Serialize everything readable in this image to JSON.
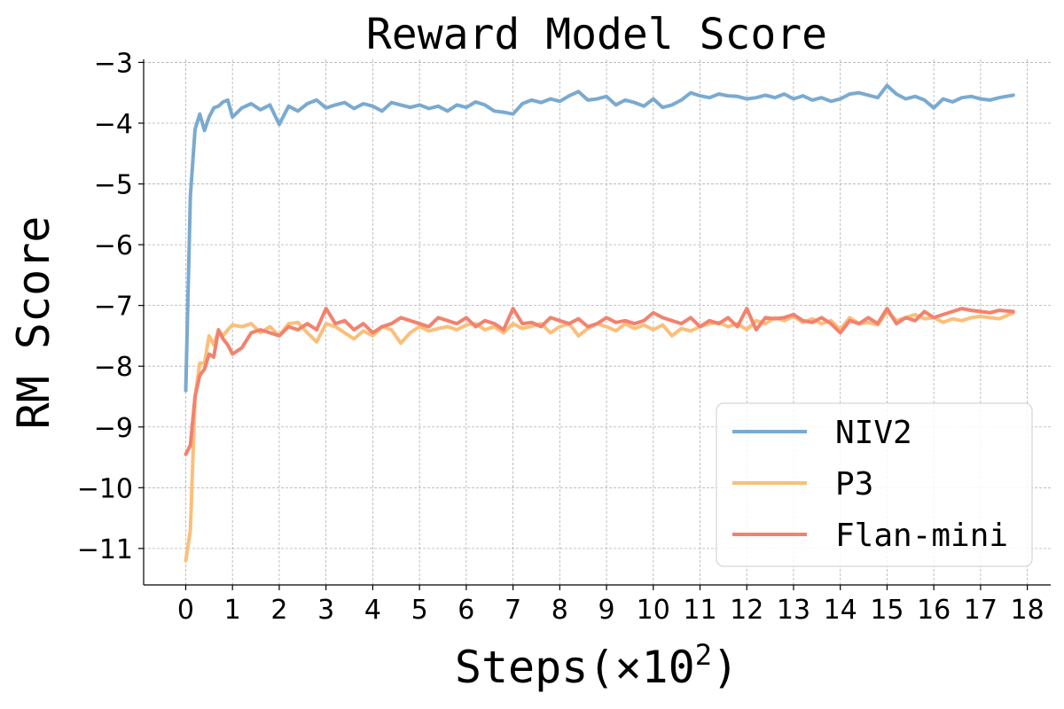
{
  "chart_data": {
    "type": "line",
    "title": "Reward Model Score",
    "xlabel_main": "Steps(×10",
    "xlabel_sup": "2",
    "xlabel_close": ")",
    "ylabel": "RM Score",
    "xlim": [
      -0.9,
      18.5
    ],
    "ylim": [
      -11.6,
      -2.95
    ],
    "xticks": [
      0,
      1,
      2,
      3,
      4,
      5,
      6,
      7,
      8,
      9,
      10,
      11,
      12,
      13,
      14,
      15,
      16,
      17,
      18
    ],
    "xtick_labels": [
      "0",
      "1",
      "2",
      "3",
      "4",
      "5",
      "6",
      "7",
      "8",
      "9",
      "10",
      "11",
      "12",
      "13",
      "14",
      "15",
      "16",
      "17",
      "18"
    ],
    "yticks": [
      -3,
      -4,
      -5,
      -6,
      -7,
      -8,
      -9,
      -10,
      -11
    ],
    "ytick_labels": [
      "−3",
      "−4",
      "−5",
      "−6",
      "−7",
      "−8",
      "−9",
      "−10",
      "−11"
    ],
    "grid": true,
    "legend_position": "lower-right",
    "series": [
      {
        "name": "NIV2",
        "color": "#7aaad0",
        "x": [
          0,
          0.1,
          0.2,
          0.3,
          0.4,
          0.5,
          0.6,
          0.7,
          0.8,
          0.9,
          1.0,
          1.2,
          1.4,
          1.6,
          1.8,
          2.0,
          2.2,
          2.4,
          2.6,
          2.8,
          3.0,
          3.2,
          3.4,
          3.6,
          3.8,
          4.0,
          4.2,
          4.4,
          4.6,
          4.8,
          5.0,
          5.2,
          5.4,
          5.6,
          5.8,
          6.0,
          6.2,
          6.4,
          6.6,
          6.8,
          7.0,
          7.2,
          7.4,
          7.6,
          7.8,
          8.0,
          8.2,
          8.4,
          8.6,
          8.8,
          9.0,
          9.2,
          9.4,
          9.6,
          9.8,
          10.0,
          10.2,
          10.4,
          10.6,
          10.8,
          11.0,
          11.2,
          11.4,
          11.6,
          11.8,
          12.0,
          12.2,
          12.4,
          12.6,
          12.8,
          13.0,
          13.2,
          13.4,
          13.6,
          13.8,
          14.0,
          14.2,
          14.4,
          14.6,
          14.8,
          15.0,
          15.2,
          15.4,
          15.6,
          15.8,
          16.0,
          16.2,
          16.4,
          16.6,
          16.8,
          17.0,
          17.2,
          17.4,
          17.7
        ],
        "y": [
          -8.4,
          -5.2,
          -4.1,
          -3.85,
          -4.12,
          -3.9,
          -3.75,
          -3.72,
          -3.65,
          -3.62,
          -3.9,
          -3.75,
          -3.68,
          -3.78,
          -3.7,
          -4.02,
          -3.72,
          -3.8,
          -3.68,
          -3.62,
          -3.75,
          -3.7,
          -3.66,
          -3.76,
          -3.68,
          -3.72,
          -3.8,
          -3.66,
          -3.7,
          -3.74,
          -3.7,
          -3.76,
          -3.72,
          -3.8,
          -3.7,
          -3.74,
          -3.65,
          -3.7,
          -3.8,
          -3.82,
          -3.85,
          -3.68,
          -3.62,
          -3.66,
          -3.6,
          -3.64,
          -3.55,
          -3.48,
          -3.62,
          -3.6,
          -3.56,
          -3.7,
          -3.62,
          -3.66,
          -3.72,
          -3.6,
          -3.74,
          -3.7,
          -3.62,
          -3.5,
          -3.55,
          -3.58,
          -3.52,
          -3.55,
          -3.56,
          -3.6,
          -3.58,
          -3.54,
          -3.58,
          -3.52,
          -3.6,
          -3.55,
          -3.62,
          -3.58,
          -3.64,
          -3.6,
          -3.52,
          -3.5,
          -3.54,
          -3.58,
          -3.38,
          -3.52,
          -3.6,
          -3.56,
          -3.62,
          -3.75,
          -3.6,
          -3.65,
          -3.58,
          -3.56,
          -3.6,
          -3.62,
          -3.58,
          -3.54
        ]
      },
      {
        "name": "P3",
        "color": "#fbbf7a",
        "x": [
          0,
          0.1,
          0.2,
          0.3,
          0.4,
          0.5,
          0.6,
          0.7,
          0.8,
          0.9,
          1.0,
          1.2,
          1.4,
          1.6,
          1.8,
          2.0,
          2.2,
          2.4,
          2.6,
          2.8,
          3.0,
          3.2,
          3.4,
          3.6,
          3.8,
          4.0,
          4.2,
          4.4,
          4.6,
          4.8,
          5.0,
          5.2,
          5.4,
          5.6,
          5.8,
          6.0,
          6.2,
          6.4,
          6.6,
          6.8,
          7.0,
          7.2,
          7.4,
          7.6,
          7.8,
          8.0,
          8.2,
          8.4,
          8.6,
          8.8,
          9.0,
          9.2,
          9.4,
          9.6,
          9.8,
          10.0,
          10.2,
          10.4,
          10.6,
          10.8,
          11.0,
          11.2,
          11.4,
          11.6,
          11.8,
          12.0,
          12.2,
          12.4,
          12.6,
          12.8,
          13.0,
          13.2,
          13.4,
          13.6,
          13.8,
          14.0,
          14.2,
          14.4,
          14.6,
          14.8,
          15.0,
          15.2,
          15.4,
          15.6,
          15.8,
          16.0,
          16.2,
          16.4,
          16.6,
          16.8,
          17.0,
          17.2,
          17.4,
          17.7
        ],
        "y": [
          -11.2,
          -10.7,
          -8.5,
          -7.95,
          -7.95,
          -7.5,
          -7.65,
          -7.42,
          -7.5,
          -7.4,
          -7.32,
          -7.35,
          -7.3,
          -7.45,
          -7.35,
          -7.5,
          -7.3,
          -7.28,
          -7.45,
          -7.6,
          -7.3,
          -7.35,
          -7.45,
          -7.55,
          -7.42,
          -7.5,
          -7.35,
          -7.4,
          -7.62,
          -7.45,
          -7.35,
          -7.42,
          -7.38,
          -7.35,
          -7.4,
          -7.32,
          -7.3,
          -7.4,
          -7.35,
          -7.45,
          -7.3,
          -7.38,
          -7.34,
          -7.3,
          -7.45,
          -7.35,
          -7.3,
          -7.5,
          -7.38,
          -7.3,
          -7.35,
          -7.42,
          -7.3,
          -7.38,
          -7.32,
          -7.4,
          -7.32,
          -7.5,
          -7.38,
          -7.42,
          -7.35,
          -7.3,
          -7.28,
          -7.35,
          -7.3,
          -7.4,
          -7.25,
          -7.3,
          -7.2,
          -7.25,
          -7.18,
          -7.28,
          -7.22,
          -7.3,
          -7.25,
          -7.4,
          -7.2,
          -7.3,
          -7.28,
          -7.32,
          -7.1,
          -7.25,
          -7.2,
          -7.15,
          -7.22,
          -7.2,
          -7.28,
          -7.22,
          -7.25,
          -7.2,
          -7.18,
          -7.2,
          -7.22,
          -7.12
        ]
      },
      {
        "name": "Flan-mini",
        "color": "#f2826e",
        "x": [
          0,
          0.1,
          0.2,
          0.3,
          0.4,
          0.5,
          0.6,
          0.7,
          0.8,
          0.9,
          1.0,
          1.2,
          1.4,
          1.6,
          1.8,
          2.0,
          2.2,
          2.4,
          2.6,
          2.8,
          3.0,
          3.2,
          3.4,
          3.6,
          3.8,
          4.0,
          4.2,
          4.4,
          4.6,
          4.8,
          5.0,
          5.2,
          5.4,
          5.6,
          5.8,
          6.0,
          6.2,
          6.4,
          6.6,
          6.8,
          7.0,
          7.2,
          7.4,
          7.6,
          7.8,
          8.0,
          8.2,
          8.4,
          8.6,
          8.8,
          9.0,
          9.2,
          9.4,
          9.6,
          9.8,
          10.0,
          10.2,
          10.4,
          10.6,
          10.8,
          11.0,
          11.2,
          11.4,
          11.6,
          11.8,
          12.0,
          12.2,
          12.4,
          12.6,
          12.8,
          13.0,
          13.2,
          13.4,
          13.6,
          13.8,
          14.0,
          14.2,
          14.4,
          14.6,
          14.8,
          15.0,
          15.2,
          15.4,
          15.6,
          15.8,
          16.0,
          16.2,
          16.4,
          16.6,
          16.8,
          17.0,
          17.2,
          17.4,
          17.7
        ],
        "y": [
          -9.45,
          -9.3,
          -8.5,
          -8.15,
          -8.05,
          -7.8,
          -7.85,
          -7.4,
          -7.55,
          -7.65,
          -7.8,
          -7.7,
          -7.45,
          -7.4,
          -7.45,
          -7.5,
          -7.35,
          -7.4,
          -7.3,
          -7.4,
          -7.05,
          -7.3,
          -7.25,
          -7.4,
          -7.3,
          -7.45,
          -7.35,
          -7.3,
          -7.2,
          -7.25,
          -7.3,
          -7.35,
          -7.2,
          -7.25,
          -7.3,
          -7.2,
          -7.35,
          -7.25,
          -7.3,
          -7.4,
          -7.05,
          -7.3,
          -7.28,
          -7.35,
          -7.2,
          -7.25,
          -7.3,
          -7.22,
          -7.35,
          -7.3,
          -7.2,
          -7.28,
          -7.25,
          -7.3,
          -7.25,
          -7.12,
          -7.2,
          -7.25,
          -7.3,
          -7.2,
          -7.35,
          -7.25,
          -7.3,
          -7.2,
          -7.35,
          -7.05,
          -7.4,
          -7.2,
          -7.22,
          -7.2,
          -7.15,
          -7.25,
          -7.28,
          -7.2,
          -7.3,
          -7.45,
          -7.25,
          -7.3,
          -7.2,
          -7.3,
          -7.05,
          -7.3,
          -7.2,
          -7.25,
          -7.1,
          -7.2,
          -7.15,
          -7.1,
          -7.05,
          -7.08,
          -7.1,
          -7.12,
          -7.08,
          -7.1
        ]
      }
    ]
  }
}
